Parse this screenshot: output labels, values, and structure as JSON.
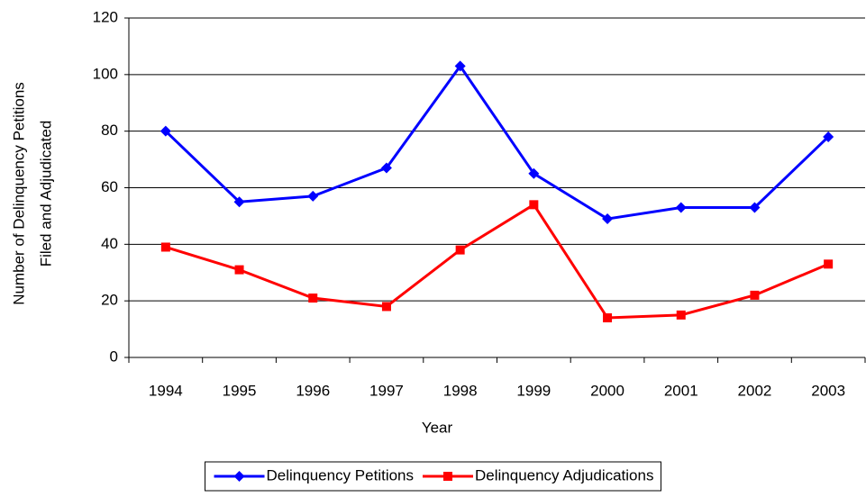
{
  "chart_data": {
    "type": "line",
    "xlabel": "Year",
    "ylabel": [
      "Number of Delinquency Petitions",
      "Filed and Adjudicated"
    ],
    "categories": [
      "1994",
      "1995",
      "1996",
      "1997",
      "1998",
      "1999",
      "2000",
      "2001",
      "2002",
      "2003"
    ],
    "series": [
      {
        "name": "Delinquency Petitions",
        "color": "#0000ff",
        "marker": "diamond",
        "values": [
          80,
          55,
          57,
          67,
          103,
          65,
          49,
          53,
          53,
          78
        ]
      },
      {
        "name": "Delinquency Adjudications",
        "color": "#ff0000",
        "marker": "square",
        "values": [
          39,
          31,
          21,
          18,
          38,
          54,
          14,
          15,
          22,
          33
        ]
      }
    ],
    "ylim": [
      0,
      120
    ],
    "yticks": [
      0,
      20,
      40,
      60,
      80,
      100,
      120
    ],
    "grid": true,
    "legend": "bottom"
  }
}
